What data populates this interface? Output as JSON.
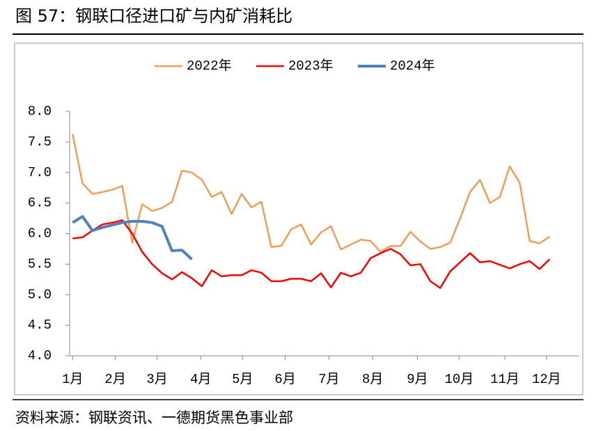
{
  "header": {
    "title": "图 57：钢联口径进口矿与内矿消耗比"
  },
  "chart_data": {
    "type": "line",
    "xlim": [
      0.7,
      52
    ],
    "xticks": [
      {
        "value": 1,
        "label": "1月"
      },
      {
        "value": 5.3,
        "label": "2月"
      },
      {
        "value": 9.5,
        "label": "3月"
      },
      {
        "value": 13.9,
        "label": "4月"
      },
      {
        "value": 18.1,
        "label": "5月"
      },
      {
        "value": 22.4,
        "label": "6月"
      },
      {
        "value": 26.8,
        "label": "7月"
      },
      {
        "value": 31.2,
        "label": "8月"
      },
      {
        "value": 35.7,
        "label": "9月"
      },
      {
        "value": 39.9,
        "label": "10月"
      },
      {
        "value": 44.5,
        "label": "11月"
      },
      {
        "value": 48.7,
        "label": "12月"
      }
    ],
    "ylim": [
      4.0,
      8.0
    ],
    "yticks": [
      {
        "value": 4,
        "label": "4.0"
      },
      {
        "value": 4.5,
        "label": "4.5"
      },
      {
        "value": 5,
        "label": "5.0"
      },
      {
        "value": 5.5,
        "label": "5.5"
      },
      {
        "value": 6,
        "label": "6.0"
      },
      {
        "value": 6.5,
        "label": "6.5"
      },
      {
        "value": 7,
        "label": "7.0"
      },
      {
        "value": 7.5,
        "label": "7.5"
      },
      {
        "value": 8,
        "label": "8.0"
      }
    ],
    "grid": false,
    "legend": "top",
    "series": [
      {
        "name": "2022年",
        "color": "#ED9F55",
        "width": 2.5,
        "x": [
          1,
          2,
          3,
          4,
          5,
          6,
          7,
          8,
          9,
          10,
          11,
          12,
          13,
          14,
          15,
          16,
          17,
          18,
          19,
          20,
          21,
          22,
          23,
          24,
          25,
          26,
          27,
          28,
          29,
          30,
          31,
          32,
          33,
          34,
          35,
          36,
          37,
          38,
          39,
          40,
          41,
          42,
          43,
          44,
          45,
          46,
          47,
          48,
          49
        ],
        "values": [
          7.63,
          6.82,
          6.65,
          6.68,
          6.72,
          6.78,
          5.85,
          6.48,
          6.37,
          6.42,
          6.52,
          7.03,
          7.0,
          6.88,
          6.6,
          6.68,
          6.32,
          6.65,
          6.43,
          6.52,
          5.78,
          5.8,
          6.07,
          6.15,
          5.82,
          6.02,
          6.12,
          5.74,
          5.82,
          5.9,
          5.88,
          5.7,
          5.8,
          5.8,
          6.03,
          5.87,
          5.75,
          5.78,
          5.85,
          6.25,
          6.68,
          6.88,
          6.5,
          6.6,
          7.1,
          6.83,
          5.88,
          5.84,
          5.95
        ]
      },
      {
        "name": "2023年",
        "color": "#FF0000",
        "width": 2.5,
        "x": [
          1,
          2,
          3,
          4,
          5,
          6,
          7,
          8,
          9,
          10,
          11,
          12,
          13,
          14,
          15,
          16,
          17,
          18,
          19,
          20,
          21,
          22,
          23,
          24,
          25,
          26,
          27,
          28,
          29,
          30,
          31,
          32,
          33,
          34,
          35,
          36,
          37,
          38,
          39,
          40,
          41,
          42,
          43,
          44,
          45,
          46,
          47,
          48,
          49
        ],
        "values": [
          5.92,
          5.94,
          6.05,
          6.15,
          6.18,
          6.22,
          6.0,
          5.7,
          5.5,
          5.35,
          5.25,
          5.37,
          5.27,
          5.14,
          5.4,
          5.3,
          5.32,
          5.32,
          5.4,
          5.36,
          5.22,
          5.22,
          5.26,
          5.26,
          5.22,
          5.35,
          5.12,
          5.36,
          5.3,
          5.36,
          5.6,
          5.68,
          5.75,
          5.66,
          5.48,
          5.5,
          5.22,
          5.11,
          5.38,
          5.53,
          5.68,
          5.53,
          5.55,
          5.49,
          5.43,
          5.5,
          5.55,
          5.42,
          5.58
        ]
      },
      {
        "name": "2024年",
        "color": "#4F81BD",
        "width": 4,
        "x": [
          1,
          2,
          3,
          4,
          5,
          6,
          7,
          8,
          9,
          10,
          11,
          12,
          13
        ],
        "values": [
          6.18,
          6.28,
          6.05,
          6.1,
          6.14,
          6.18,
          6.2,
          6.2,
          6.18,
          6.12,
          5.72,
          5.73,
          5.58
        ]
      }
    ]
  },
  "footer": {
    "source": "资料来源：钢联资讯、一德期货黑色事业部"
  }
}
